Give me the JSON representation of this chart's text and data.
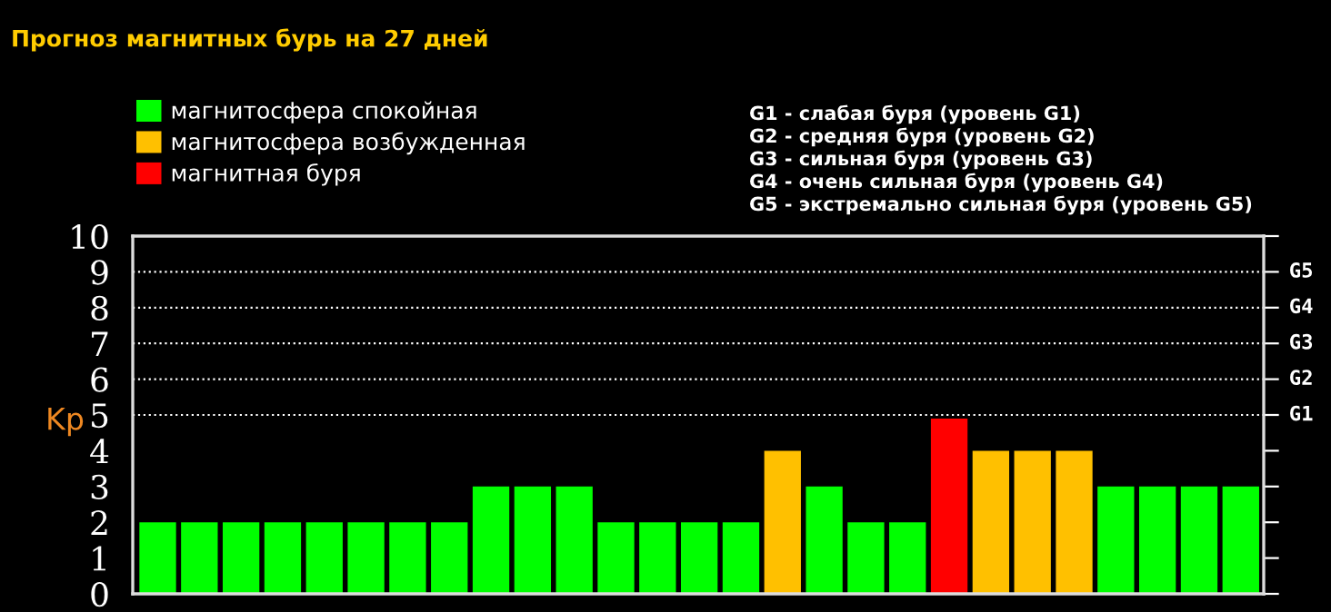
{
  "chart_data": {
    "type": "bar",
    "title": "Прогноз магнитных бурь на 27 дней",
    "ylabel": "Kp",
    "categories": [
      null,
      null,
      null,
      null,
      null,
      null,
      null,
      null,
      null,
      null,
      null,
      null,
      null,
      null,
      null,
      null,
      null,
      null,
      null,
      null,
      null,
      null,
      null,
      null,
      null,
      null,
      null
    ],
    "series": [
      {
        "name": "магнитосфера спокойная",
        "color": "#00ff00",
        "values": [
          2,
          2,
          2,
          2,
          2,
          2,
          2,
          2,
          3,
          3,
          3,
          2,
          2,
          2,
          2,
          null,
          3,
          2,
          2,
          null,
          null,
          null,
          null,
          3,
          3,
          3,
          3
        ]
      },
      {
        "name": "магнитосфера возбужденная",
        "color": "#ffc000",
        "values": [
          null,
          null,
          null,
          null,
          null,
          null,
          null,
          null,
          null,
          null,
          null,
          null,
          null,
          null,
          null,
          4,
          null,
          null,
          null,
          null,
          4,
          4,
          4,
          null,
          null,
          null,
          null
        ]
      },
      {
        "name": "магнитная буря",
        "color": "#ff0000",
        "values": [
          null,
          null,
          null,
          null,
          null,
          null,
          null,
          null,
          null,
          null,
          null,
          null,
          null,
          null,
          null,
          null,
          null,
          null,
          null,
          4.9,
          null,
          null,
          null,
          null,
          null,
          null,
          null
        ]
      }
    ],
    "ylim": [
      0,
      10
    ],
    "yticks": [
      0,
      1,
      2,
      3,
      4,
      5,
      6,
      7,
      8,
      9,
      10
    ],
    "ref_lines": [
      {
        "axis": "y",
        "value": 5,
        "label": "G1",
        "color": "#ffffff",
        "line_style": "dotted"
      },
      {
        "axis": "y",
        "value": 6,
        "label": "G2",
        "color": "#ffffff",
        "line_style": "dotted"
      },
      {
        "axis": "y",
        "value": 7,
        "label": "G3",
        "color": "#ffffff",
        "line_style": "dotted"
      },
      {
        "axis": "y",
        "value": 8,
        "label": "G4",
        "color": "#ffffff",
        "line_style": "dotted"
      },
      {
        "axis": "y",
        "value": 9,
        "label": "G5",
        "color": "#ffffff",
        "line_style": "dotted"
      }
    ],
    "annotations": [
      "G1 - слабая буря (уровень G1)",
      "G2 - средняя буря (уровень G2)",
      "G3 - сильная буря (уровень G3)",
      "G4 - очень сильная буря (уровень G4)",
      "G5 - экстремально сильная буря (уровень G5)"
    ],
    "legend": "top left",
    "grid": false
  }
}
